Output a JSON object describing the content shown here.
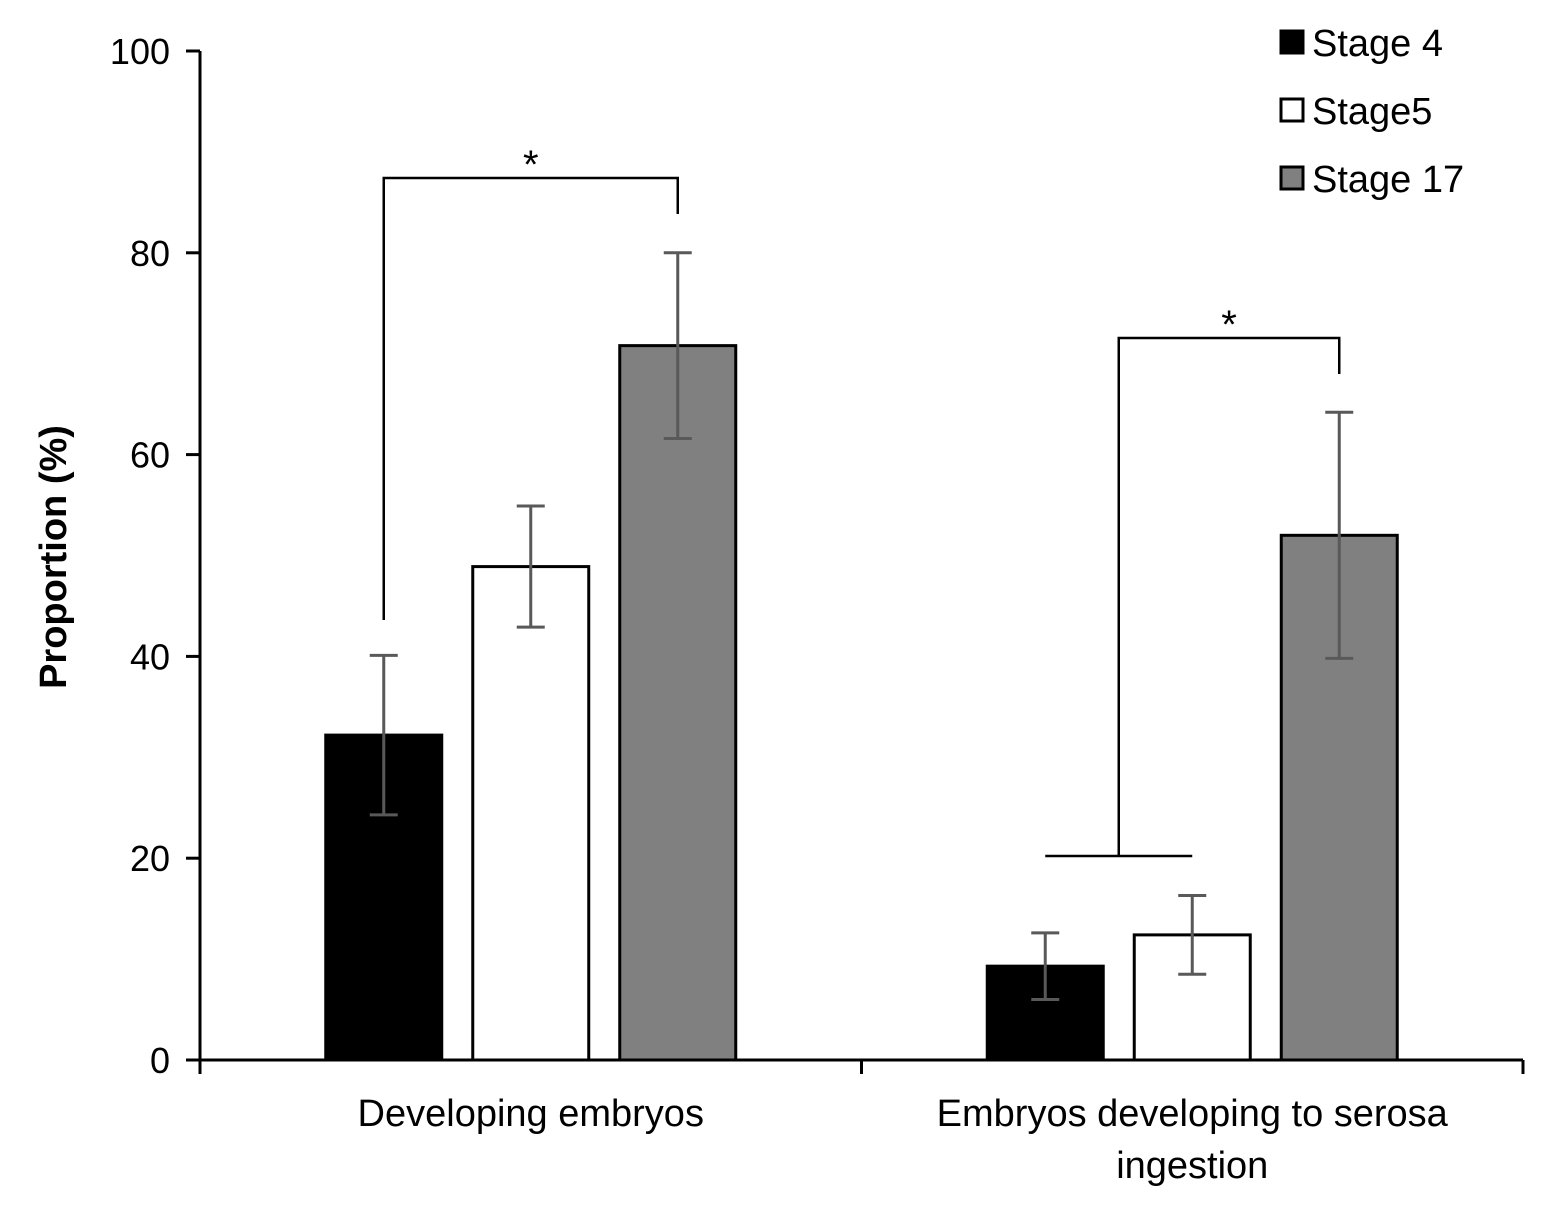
{
  "chart_data": {
    "type": "bar",
    "categories": [
      "Developing embryos",
      "Embryos developing to serosa ingestion"
    ],
    "category_lines": [
      [
        "Developing embryos"
      ],
      [
        "Embryos developing to serosa",
        "ingestion"
      ]
    ],
    "series": [
      {
        "name": "Stage 4",
        "color": "#000000",
        "values": [
          32.2,
          9.3
        ],
        "error": [
          7.9,
          3.3
        ]
      },
      {
        "name": "Stage5",
        "color": "#ffffff",
        "values": [
          48.9,
          12.4
        ],
        "error": [
          6.0,
          3.9
        ]
      },
      {
        "name": "Stage 17",
        "color": "#808080",
        "values": [
          70.8,
          52.0
        ],
        "error": [
          9.2,
          12.2
        ]
      }
    ],
    "ylabel": "Proportion (%)",
    "xlabel": "",
    "ylim": [
      0,
      100
    ],
    "yticks": [
      0,
      20,
      40,
      60,
      80,
      100
    ],
    "grid": false,
    "legend_position": "top-right",
    "significance": [
      {
        "label": "*",
        "category": 0,
        "from_series": 0,
        "to_series": 2
      },
      {
        "label": "*",
        "category": 1,
        "from_series": [
          0,
          1
        ],
        "to_series": 2
      }
    ]
  }
}
